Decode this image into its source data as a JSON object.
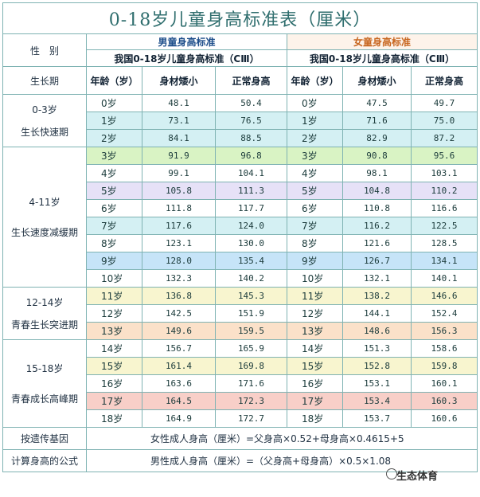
{
  "title": "0-18岁儿童身高标准表（厘米）",
  "gender_label": "性　别",
  "stage_label": "生长期",
  "boys_header": "男童身高标准",
  "girls_header": "女童身高标准",
  "standard_label": "我国0-18岁儿童身高标准（CⅢ）",
  "col_age": "年龄（岁）",
  "col_short": "身材矮小",
  "col_normal": "正常身高",
  "stages": [
    {
      "range": "0-3岁",
      "name": "生长快速期"
    },
    {
      "range": "4-11岁",
      "name": "生长速度减缓期"
    },
    {
      "range": "12-14岁",
      "name": "青春生长突进期"
    },
    {
      "range": "15-18岁",
      "name": "青春成长高峰期"
    }
  ],
  "rows": [
    {
      "boy_age": "0岁",
      "boy_short": "48.1",
      "boy_normal": "50.4",
      "girl_age": "0岁",
      "girl_short": "47.5",
      "girl_normal": "49.7",
      "tint": "none"
    },
    {
      "boy_age": "1岁",
      "boy_short": "73.1",
      "boy_normal": "76.5",
      "girl_age": "1岁",
      "girl_short": "71.6",
      "girl_normal": "75.0",
      "tint": "cyan"
    },
    {
      "boy_age": "2岁",
      "boy_short": "84.1",
      "boy_normal": "88.5",
      "girl_age": "2岁",
      "girl_short": "82.9",
      "girl_normal": "87.2",
      "tint": "cyan"
    },
    {
      "boy_age": "3岁",
      "boy_short": "91.9",
      "boy_normal": "96.8",
      "girl_age": "3岁",
      "girl_short": "90.8",
      "girl_normal": "95.6",
      "tint": "green"
    },
    {
      "boy_age": "4岁",
      "boy_short": "99.1",
      "boy_normal": "104.1",
      "girl_age": "4岁",
      "girl_short": "98.1",
      "girl_normal": "103.1",
      "tint": "none"
    },
    {
      "boy_age": "5岁",
      "boy_short": "105.8",
      "boy_normal": "111.3",
      "girl_age": "5岁",
      "girl_short": "104.8",
      "girl_normal": "110.2",
      "tint": "purple"
    },
    {
      "boy_age": "6岁",
      "boy_short": "111.8",
      "boy_normal": "117.7",
      "girl_age": "6岁",
      "girl_short": "110.8",
      "girl_normal": "116.6",
      "tint": "none"
    },
    {
      "boy_age": "7岁",
      "boy_short": "117.6",
      "boy_normal": "124.0",
      "girl_age": "7岁",
      "girl_short": "116.2",
      "girl_normal": "122.5",
      "tint": "cyan"
    },
    {
      "boy_age": "8岁",
      "boy_short": "123.1",
      "boy_normal": "130.0",
      "girl_age": "8岁",
      "girl_short": "121.6",
      "girl_normal": "128.5",
      "tint": "none"
    },
    {
      "boy_age": "9岁",
      "boy_short": "128.0",
      "boy_normal": "135.4",
      "girl_age": "9岁",
      "girl_short": "126.7",
      "girl_normal": "134.1",
      "tint": "blue"
    },
    {
      "boy_age": "10岁",
      "boy_short": "132.3",
      "boy_normal": "140.2",
      "girl_age": "10岁",
      "girl_short": "132.1",
      "girl_normal": "140.1",
      "tint": "none"
    },
    {
      "boy_age": "11岁",
      "boy_short": "136.8",
      "boy_normal": "145.3",
      "girl_age": "11岁",
      "girl_short": "138.2",
      "girl_normal": "146.6",
      "tint": "yellow"
    },
    {
      "boy_age": "12岁",
      "boy_short": "142.5",
      "boy_normal": "151.9",
      "girl_age": "12岁",
      "girl_short": "144.1",
      "girl_normal": "152.4",
      "tint": "none"
    },
    {
      "boy_age": "13岁",
      "boy_short": "149.6",
      "boy_normal": "159.5",
      "girl_age": "13岁",
      "girl_short": "148.6",
      "girl_normal": "156.3",
      "tint": "peach"
    },
    {
      "boy_age": "14岁",
      "boy_short": "156.7",
      "boy_normal": "165.9",
      "girl_age": "14岁",
      "girl_short": "151.3",
      "girl_normal": "158.6",
      "tint": "none"
    },
    {
      "boy_age": "15岁",
      "boy_short": "161.4",
      "boy_normal": "169.8",
      "girl_age": "15岁",
      "girl_short": "152.8",
      "girl_normal": "159.8",
      "tint": "yellow"
    },
    {
      "boy_age": "16岁",
      "boy_short": "163.6",
      "boy_normal": "171.6",
      "girl_age": "16岁",
      "girl_short": "153.1",
      "girl_normal": "160.1",
      "tint": "none"
    },
    {
      "boy_age": "17岁",
      "boy_short": "164.5",
      "boy_normal": "172.3",
      "girl_age": "17岁",
      "girl_short": "153.4",
      "girl_normal": "160.3",
      "tint": "pink"
    },
    {
      "boy_age": "18岁",
      "boy_short": "164.9",
      "boy_normal": "172.7",
      "girl_age": "18岁",
      "girl_short": "153.7",
      "girl_normal": "160.6",
      "tint": "none"
    }
  ],
  "footer": {
    "label_top": "按遗传基因",
    "label_bottom": "计算身高的公式",
    "female_formula": "女性成人身高（厘米）=父身高×0.52+母身高×0.4615+5",
    "male_formula": "男性成人身高（厘米）=（父身高+母身高）×0.5×1.08"
  },
  "watermark": "生态体育"
}
